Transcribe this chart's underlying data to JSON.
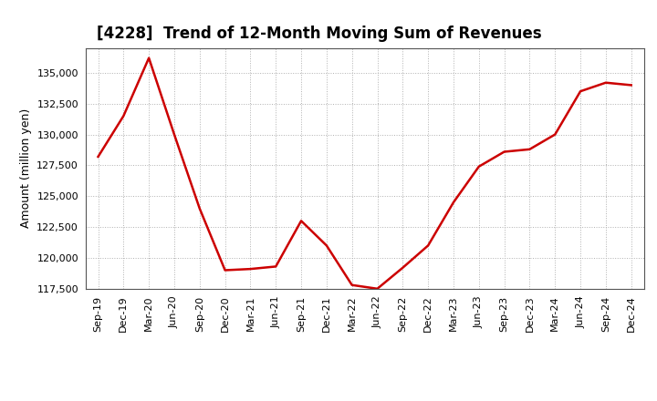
{
  "title": "[4228]  Trend of 12-Month Moving Sum of Revenues",
  "ylabel": "Amount (million yen)",
  "line_color": "#cc0000",
  "background_color": "#ffffff",
  "plot_bg_color": "#ffffff",
  "grid_color": "#b0b0b0",
  "x_labels": [
    "Sep-19",
    "Dec-19",
    "Mar-20",
    "Jun-20",
    "Sep-20",
    "Dec-20",
    "Mar-21",
    "Jun-21",
    "Sep-21",
    "Dec-21",
    "Mar-22",
    "Jun-22",
    "Sep-22",
    "Dec-22",
    "Mar-23",
    "Jun-23",
    "Sep-23",
    "Dec-23",
    "Mar-24",
    "Jun-24",
    "Sep-24",
    "Dec-24"
  ],
  "y_values": [
    128200,
    131500,
    136200,
    130000,
    124000,
    119000,
    119100,
    119300,
    123000,
    121000,
    117800,
    117500,
    119200,
    121000,
    124500,
    127400,
    128600,
    128800,
    130000,
    133500,
    134200,
    134000
  ],
  "ylim": [
    117500,
    137000
  ],
  "yticks": [
    117500,
    120000,
    122500,
    125000,
    127500,
    130000,
    132500,
    135000
  ],
  "title_fontsize": 12,
  "ylabel_fontsize": 9,
  "tick_fontsize": 8,
  "linewidth": 1.8
}
